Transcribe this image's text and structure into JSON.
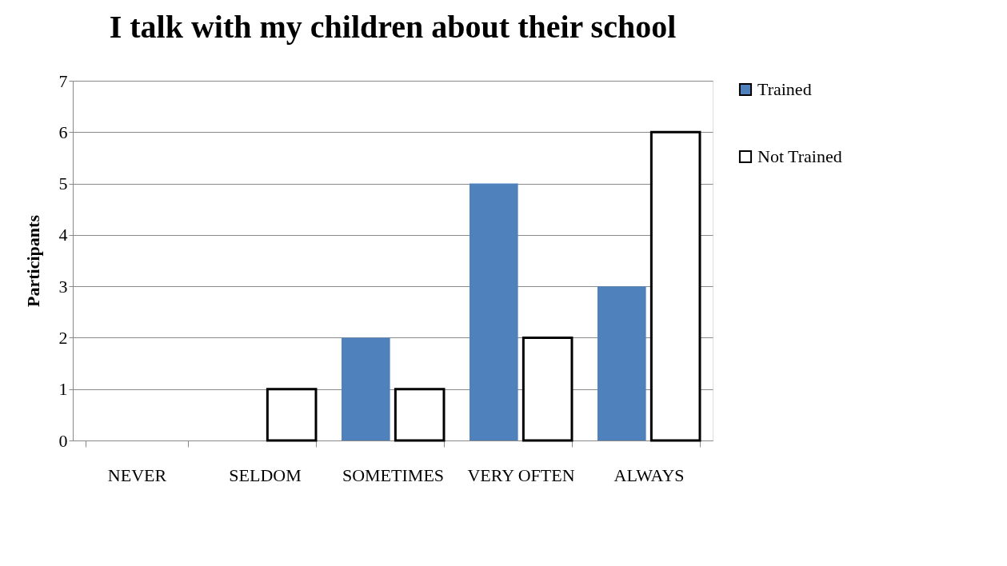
{
  "chart_data": {
    "type": "bar",
    "title": "I talk with my children about their school",
    "ylabel": "Participants",
    "categories": [
      "NEVER",
      "SELDOM",
      "SOMETIMES",
      "VERY OFTEN",
      "ALWAYS"
    ],
    "series": [
      {
        "name": "Trained",
        "color": "#4f81bd",
        "values": [
          0,
          0,
          2,
          5,
          3
        ]
      },
      {
        "name": "Not Trained",
        "color": "#ffffff",
        "values": [
          0,
          1,
          1,
          2,
          6
        ]
      }
    ],
    "ylim": [
      0,
      7
    ],
    "yticks": [
      0,
      1,
      2,
      3,
      4,
      5,
      6,
      7
    ],
    "grid": "y",
    "legend": "right"
  }
}
